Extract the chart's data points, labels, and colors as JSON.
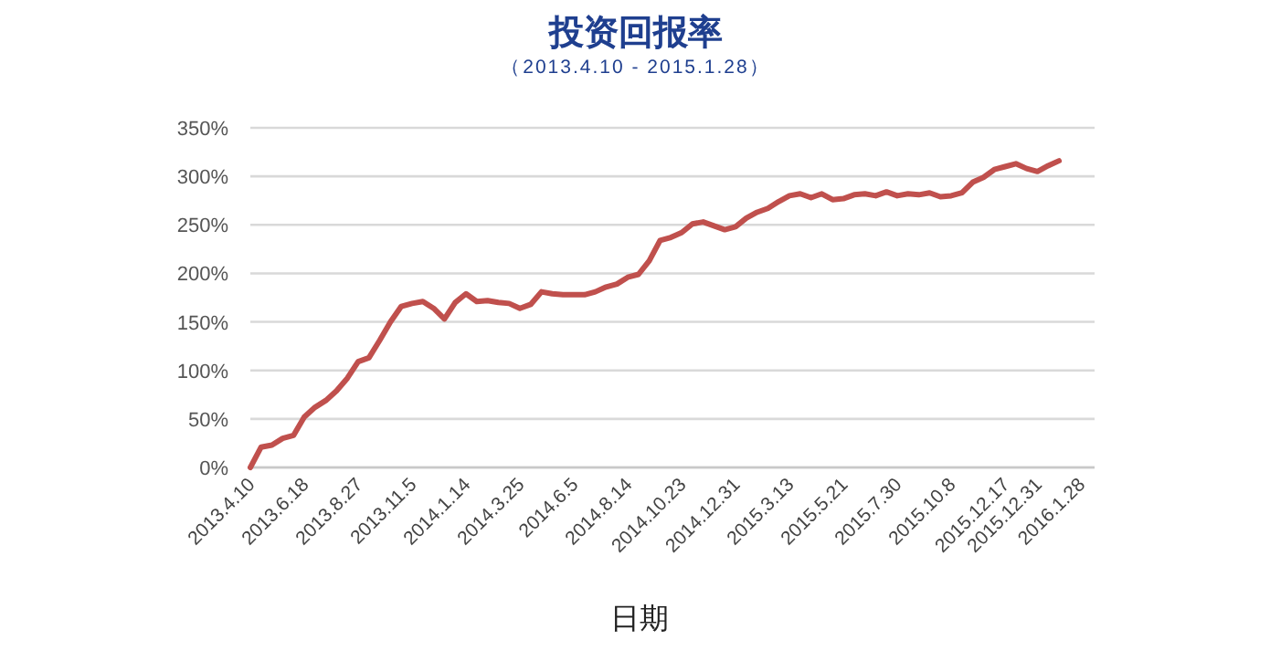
{
  "chart_data": {
    "type": "line",
    "title": "投资回报率",
    "subtitle": "（2013.4.10 - 2015.1.28）",
    "xlabel": "日期",
    "categories": [
      "2013.4.10",
      null,
      null,
      null,
      null,
      "2013.6.18",
      null,
      null,
      null,
      null,
      "2013.8.27",
      null,
      null,
      null,
      null,
      "2013.11.5",
      null,
      null,
      null,
      null,
      "2014.1.14",
      null,
      null,
      null,
      null,
      "2014.3.25",
      null,
      null,
      null,
      null,
      "2014.6.5",
      null,
      null,
      null,
      null,
      "2014.8.14",
      null,
      null,
      null,
      null,
      "2014.10.23",
      null,
      null,
      null,
      null,
      "2014.12.31",
      null,
      null,
      null,
      null,
      "2015.3.13",
      null,
      null,
      null,
      null,
      "2015.5.21",
      null,
      null,
      null,
      null,
      "2015.7.30",
      null,
      null,
      null,
      null,
      "2015.10.8",
      null,
      null,
      null,
      null,
      "2015.12.17",
      null,
      null,
      "2015.12.31",
      null,
      null,
      null,
      "2016.1.28",
      null
    ],
    "series": [
      {
        "color": "#c0504d",
        "values": [
          0,
          21,
          23,
          30,
          33,
          52,
          62,
          69,
          79,
          92,
          109,
          113,
          131,
          150,
          166,
          169,
          171,
          164,
          153,
          170,
          179,
          171,
          172,
          170,
          169,
          164,
          168,
          181,
          179,
          178,
          178,
          178,
          181,
          186,
          189,
          196,
          199,
          213,
          234,
          237,
          242,
          251,
          253,
          249,
          245,
          248,
          257,
          263,
          267,
          274,
          280,
          282,
          278,
          282,
          276,
          277,
          281,
          282,
          280,
          284,
          280,
          282,
          281,
          283,
          279,
          280,
          283,
          294,
          299,
          307,
          310,
          313,
          308,
          305,
          311,
          316,
          null,
          null,
          null
        ]
      }
    ],
    "ylim": [
      0,
      350
    ],
    "yticks": [
      {
        "value": 0,
        "label": "0%"
      },
      {
        "value": 50,
        "label": "50%"
      },
      {
        "value": 100,
        "label": "100%"
      },
      {
        "value": 150,
        "label": "150%"
      },
      {
        "value": 200,
        "label": "200%"
      },
      {
        "value": 250,
        "label": "250%"
      },
      {
        "value": 300,
        "label": "300%"
      },
      {
        "value": 350,
        "label": "350%"
      }
    ],
    "grid": "y",
    "marker": "none",
    "line_style": "solid"
  }
}
